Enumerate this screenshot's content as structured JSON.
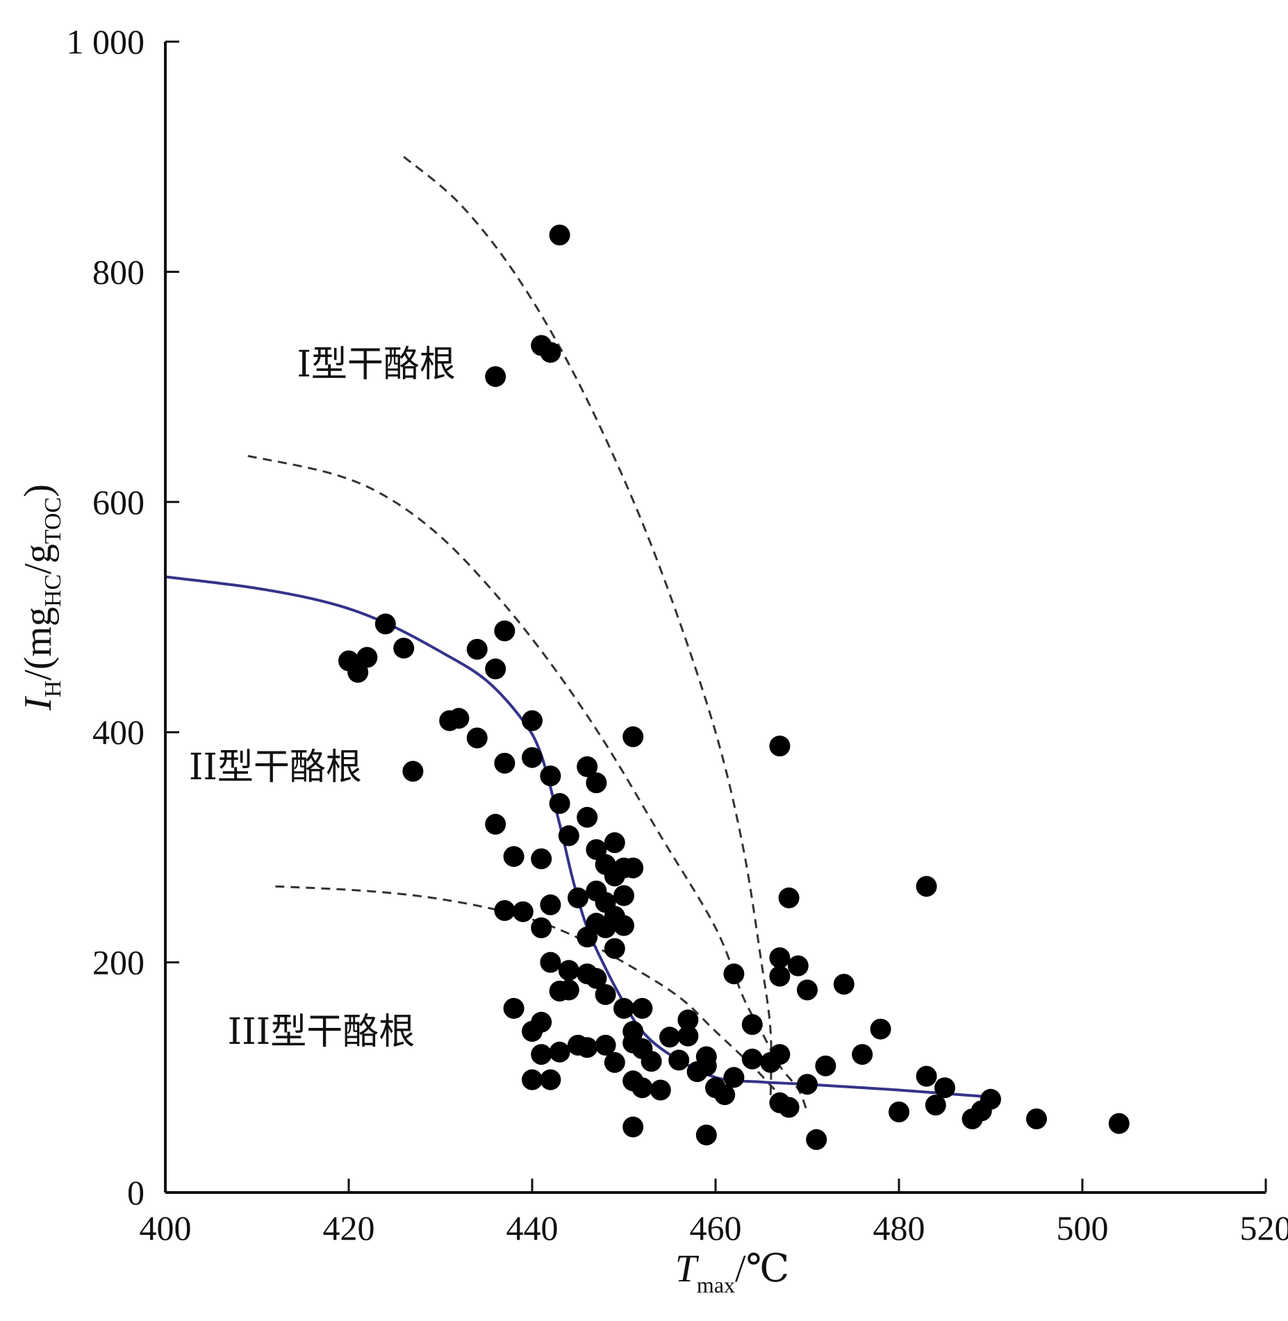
{
  "chart_data": {
    "type": "scatter",
    "x_axis": {
      "title_main": "T",
      "title_sub": "max",
      "title_unit": "/℃",
      "range": [
        400,
        520
      ],
      "ticks": [
        400,
        420,
        440,
        460,
        480,
        500,
        520
      ],
      "tick_labels": [
        "400",
        "420",
        "440",
        "460",
        "480",
        "500",
        "520"
      ]
    },
    "y_axis": {
      "title_main": "I",
      "title_sub": "H",
      "title_mid1": "/(mg",
      "title_sub2": "HC",
      "title_mid2": "/g",
      "title_sub3": "TOC",
      "title_end": ")",
      "range": [
        0,
        1000
      ],
      "ticks": [
        0,
        200,
        400,
        600,
        800,
        1000
      ],
      "tick_labels": [
        "0",
        "200",
        "400",
        "600",
        "800",
        "1 000"
      ]
    },
    "grid": false,
    "region_labels": [
      {
        "text": "I型干酪根",
        "x": 423,
        "y": 720
      },
      {
        "text": "II型干酪根",
        "x": 412,
        "y": 370
      },
      {
        "text": "III型干酪根",
        "x": 417,
        "y": 140
      }
    ],
    "colors": {
      "points": "#000000",
      "trend": "#34348a",
      "boundary": "#333333",
      "axis": "#111111"
    },
    "trend_line": [
      [
        400,
        535
      ],
      [
        410,
        525
      ],
      [
        418,
        512
      ],
      [
        424,
        495
      ],
      [
        430,
        470
      ],
      [
        435,
        445
      ],
      [
        439,
        410
      ],
      [
        441,
        380
      ],
      [
        443,
        320
      ],
      [
        444.5,
        270
      ],
      [
        446,
        230
      ],
      [
        448,
        195
      ],
      [
        450,
        165
      ],
      [
        452,
        140
      ],
      [
        455,
        120
      ],
      [
        460,
        100
      ],
      [
        465,
        96
      ],
      [
        470,
        94
      ],
      [
        480,
        89
      ],
      [
        490,
        83
      ]
    ],
    "boundary_lines": [
      [
        [
          426,
          900
        ],
        [
          432,
          860
        ],
        [
          438,
          800
        ],
        [
          444,
          720
        ],
        [
          450,
          620
        ],
        [
          455,
          520
        ],
        [
          460,
          400
        ],
        [
          463,
          300
        ],
        [
          465,
          200
        ],
        [
          466,
          140
        ],
        [
          466,
          80
        ]
      ],
      [
        [
          409,
          640
        ],
        [
          418,
          625
        ],
        [
          424,
          605
        ],
        [
          430,
          570
        ],
        [
          436,
          520
        ],
        [
          442,
          460
        ],
        [
          448,
          390
        ],
        [
          454,
          310
        ],
        [
          460,
          230
        ],
        [
          463,
          170
        ],
        [
          465,
          140
        ],
        [
          467,
          110
        ],
        [
          469,
          90
        ],
        [
          470,
          70
        ]
      ],
      [
        [
          412,
          266
        ],
        [
          422,
          262
        ],
        [
          430,
          255
        ],
        [
          438,
          242
        ],
        [
          444,
          225
        ],
        [
          450,
          200
        ],
        [
          456,
          170
        ],
        [
          460,
          140
        ],
        [
          464,
          110
        ],
        [
          467,
          85
        ],
        [
          469,
          72
        ]
      ]
    ],
    "points": [
      [
        443,
        832
      ],
      [
        441,
        736
      ],
      [
        442,
        730
      ],
      [
        436,
        709
      ],
      [
        424,
        494
      ],
      [
        426,
        473
      ],
      [
        437,
        488
      ],
      [
        434,
        472
      ],
      [
        436,
        455
      ],
      [
        420,
        462
      ],
      [
        421,
        452
      ],
      [
        422,
        465
      ],
      [
        431,
        410
      ],
      [
        432,
        412
      ],
      [
        434,
        395
      ],
      [
        437,
        373
      ],
      [
        440,
        410
      ],
      [
        440,
        378
      ],
      [
        427,
        366
      ],
      [
        436,
        320
      ],
      [
        438,
        292
      ],
      [
        441,
        290
      ],
      [
        437,
        245
      ],
      [
        439,
        244
      ],
      [
        442,
        362
      ],
      [
        443,
        338
      ],
      [
        446,
        370
      ],
      [
        447,
        356
      ],
      [
        446,
        326
      ],
      [
        444,
        310
      ],
      [
        447,
        298
      ],
      [
        449,
        304
      ],
      [
        448,
        285
      ],
      [
        449,
        275
      ],
      [
        450,
        282
      ],
      [
        451,
        282
      ],
      [
        445,
        256
      ],
      [
        447,
        262
      ],
      [
        448,
        252
      ],
      [
        450,
        258
      ],
      [
        449,
        240
      ],
      [
        448,
        230
      ],
      [
        442,
        250
      ],
      [
        441,
        230
      ],
      [
        446,
        222
      ],
      [
        447,
        234
      ],
      [
        449,
        212
      ],
      [
        450,
        232
      ],
      [
        451,
        396
      ],
      [
        442,
        200
      ],
      [
        444,
        193
      ],
      [
        446,
        190
      ],
      [
        447,
        186
      ],
      [
        448,
        172
      ],
      [
        443,
        175
      ],
      [
        444,
        176
      ],
      [
        438,
        160
      ],
      [
        440,
        140
      ],
      [
        441,
        148
      ],
      [
        441,
        120
      ],
      [
        443,
        122
      ],
      [
        445,
        128
      ],
      [
        446,
        126
      ],
      [
        448,
        128
      ],
      [
        440,
        98
      ],
      [
        442,
        98
      ],
      [
        449,
        113
      ],
      [
        450,
        160
      ],
      [
        451,
        140
      ],
      [
        452,
        160
      ],
      [
        451,
        130
      ],
      [
        452,
        125
      ],
      [
        451,
        97
      ],
      [
        452,
        91
      ],
      [
        453,
        114
      ],
      [
        454,
        89
      ],
      [
        455,
        135
      ],
      [
        456,
        115
      ],
      [
        457,
        150
      ],
      [
        457,
        136
      ],
      [
        458,
        105
      ],
      [
        459,
        110
      ],
      [
        460,
        91
      ],
      [
        461,
        85
      ],
      [
        459,
        118
      ],
      [
        462,
        100
      ],
      [
        462,
        190
      ],
      [
        451,
        57
      ],
      [
        459,
        50
      ],
      [
        464,
        146
      ],
      [
        464,
        116
      ],
      [
        466,
        113
      ],
      [
        467,
        120
      ],
      [
        467,
        78
      ],
      [
        468,
        74
      ],
      [
        467,
        388
      ],
      [
        468,
        256
      ],
      [
        467,
        204
      ],
      [
        469,
        197
      ],
      [
        467,
        188
      ],
      [
        470,
        176
      ],
      [
        474,
        181
      ],
      [
        470,
        94
      ],
      [
        471,
        46
      ],
      [
        472,
        110
      ],
      [
        476,
        120
      ],
      [
        478,
        142
      ],
      [
        480,
        70
      ],
      [
        483,
        266
      ],
      [
        483,
        101
      ],
      [
        484,
        76
      ],
      [
        485,
        91
      ],
      [
        488,
        64
      ],
      [
        489,
        71
      ],
      [
        490,
        81
      ],
      [
        495,
        64
      ],
      [
        504,
        60
      ]
    ]
  }
}
